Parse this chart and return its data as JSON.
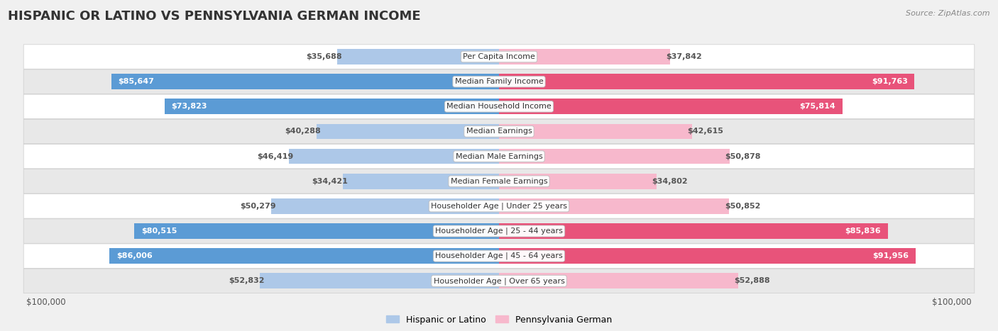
{
  "title": "HISPANIC OR LATINO VS PENNSYLVANIA GERMAN INCOME",
  "source": "Source: ZipAtlas.com",
  "categories": [
    "Per Capita Income",
    "Median Family Income",
    "Median Household Income",
    "Median Earnings",
    "Median Male Earnings",
    "Median Female Earnings",
    "Householder Age | Under 25 years",
    "Householder Age | 25 - 44 years",
    "Householder Age | 45 - 64 years",
    "Householder Age | Over 65 years"
  ],
  "hispanic_values": [
    35688,
    85647,
    73823,
    40288,
    46419,
    34421,
    50279,
    80515,
    86006,
    52832
  ],
  "penn_german_values": [
    37842,
    91763,
    75814,
    42615,
    50878,
    34802,
    50852,
    85836,
    91956,
    52888
  ],
  "hispanic_labels": [
    "$35,688",
    "$85,647",
    "$73,823",
    "$40,288",
    "$46,419",
    "$34,421",
    "$50,279",
    "$80,515",
    "$86,006",
    "$52,832"
  ],
  "penn_german_labels": [
    "$37,842",
    "$91,763",
    "$75,814",
    "$42,615",
    "$50,878",
    "$34,802",
    "$50,852",
    "$85,836",
    "$91,956",
    "$52,888"
  ],
  "max_value": 100000,
  "hispanic_color_light": "#adc8e8",
  "hispanic_color_dark": "#5b9bd5",
  "penn_german_color_light": "#f7b8cc",
  "penn_german_color_dark": "#e8537a",
  "bg_color": "#f0f0f0",
  "row_bg_even": "#ffffff",
  "row_bg_odd": "#e8e8e8",
  "label_color_inside": "#ffffff",
  "label_color_outside": "#555555",
  "inside_threshold": 55000,
  "bar_height": 0.62,
  "title_fontsize": 13,
  "source_fontsize": 8,
  "cat_fontsize": 8,
  "val_fontsize": 8
}
